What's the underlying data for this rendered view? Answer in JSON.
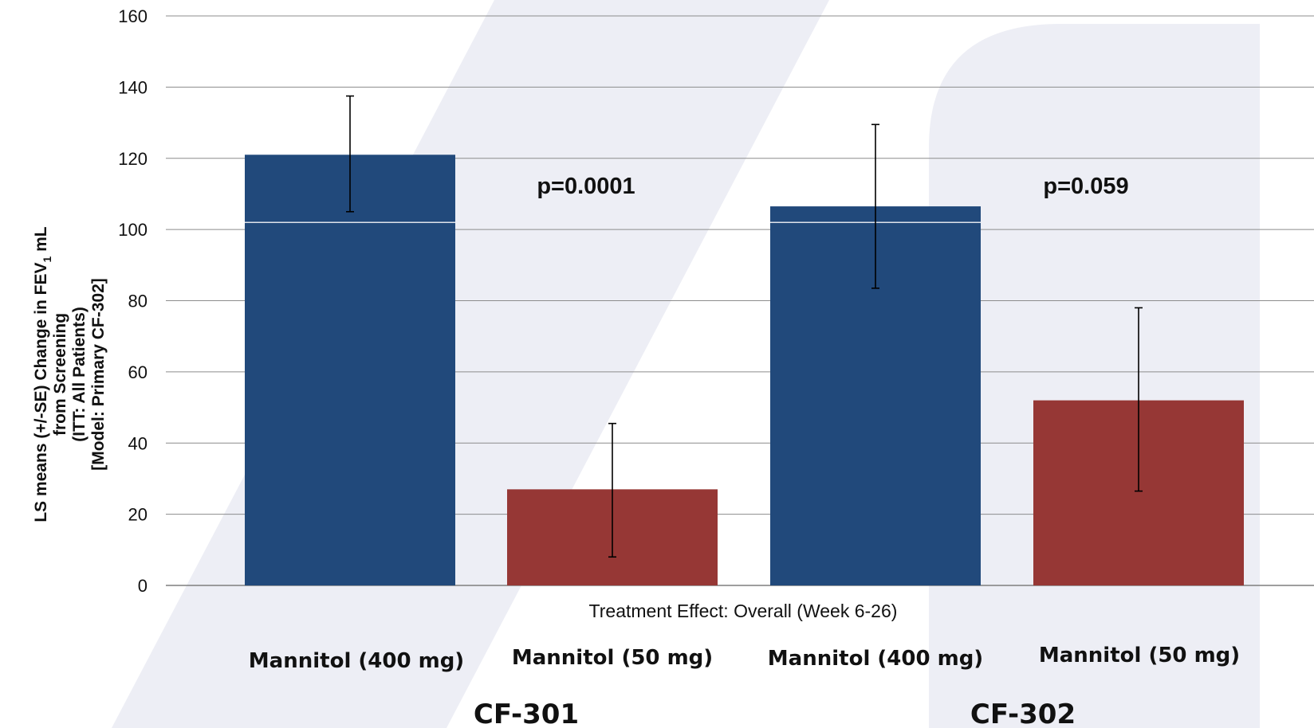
{
  "chart_data": {
    "type": "bar",
    "x_label": "Treatment Effect: Overall (Week 6-26)",
    "y_label_lines": [
      "LS means (+/-SE) Change in FEV",
      "from Screening",
      "(ITT: All Patients)",
      "[Model: Primary CF-302]"
    ],
    "y_label_subscript": "1",
    "y_label_suffix": " mL",
    "ylim": [
      0,
      160
    ],
    "y_ticks": [
      0,
      20,
      40,
      60,
      80,
      100,
      120,
      140,
      160
    ],
    "grid": true,
    "categories": [
      "Mannitol (400 mg)",
      "Mannitol (50 mg)",
      "Mannitol (400 mg)",
      "Mannitol (50 mg)"
    ],
    "groups": [
      "CF-301",
      "CF-302"
    ],
    "bars": [
      {
        "group": "CF-301",
        "category": "Mannitol (400 mg)",
        "value": 121,
        "err_low": 105,
        "err_high": 137.5,
        "color": "#21497B"
      },
      {
        "group": "CF-301",
        "category": "Mannitol (50 mg)",
        "value": 27,
        "err_low": 8,
        "err_high": 45.5,
        "color": "#963735"
      },
      {
        "group": "CF-302",
        "category": "Mannitol (400 mg)",
        "value": 106.5,
        "err_low": 83.5,
        "err_high": 129.5,
        "color": "#21497B"
      },
      {
        "group": "CF-302",
        "category": "Mannitol (50 mg)",
        "value": 52,
        "err_low": 26.5,
        "err_high": 78,
        "color": "#963735"
      }
    ],
    "annotations": [
      "p=0.0001",
      "p=0.059"
    ]
  }
}
